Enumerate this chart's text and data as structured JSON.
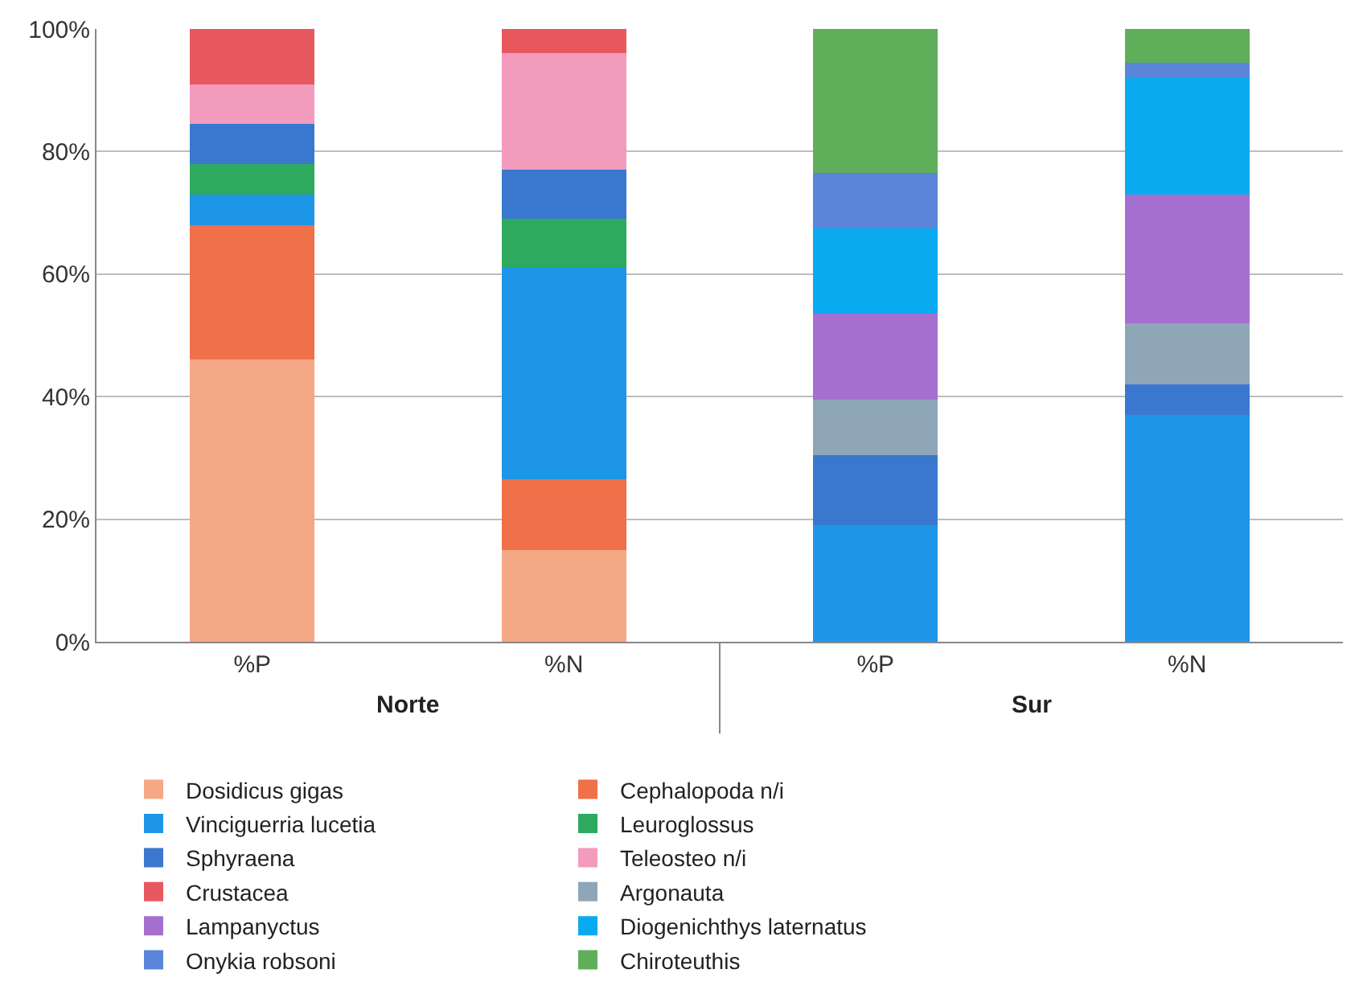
{
  "chart_data": {
    "type": "bar",
    "stacked": true,
    "categories": [
      "%P",
      "%N",
      "%P",
      "%N"
    ],
    "annotations": [
      "Norte",
      "Sur"
    ],
    "ylim": [
      0,
      100
    ],
    "yticks": [
      {
        "value": 0,
        "label": "0%"
      },
      {
        "value": 20,
        "label": "20%"
      },
      {
        "value": 40,
        "label": "40%"
      },
      {
        "value": 60,
        "label": "60%"
      },
      {
        "value": 80,
        "label": "80%"
      },
      {
        "value": 100,
        "label": "100%"
      }
    ],
    "grid": "y",
    "legend": "bottom",
    "series": [
      {
        "name": "Dosidicus gigas",
        "color": "#f5a886",
        "values": [
          46,
          15,
          null,
          null
        ]
      },
      {
        "name": "Cephalopoda n/i",
        "color": "#f0704a",
        "values": [
          22,
          11.5,
          null,
          null
        ]
      },
      {
        "name": "Vinciguerria lucetia",
        "color": "#1e96e8",
        "values": [
          5,
          34.5,
          19,
          37
        ]
      },
      {
        "name": "Leuroglossus",
        "color": "#2eaa5e",
        "values": [
          5,
          8,
          null,
          null
        ]
      },
      {
        "name": "Sphyraena",
        "color": "#3a78d0",
        "values": [
          6.5,
          8,
          11.5,
          5
        ]
      },
      {
        "name": "Teleosteo n/i",
        "color": "#f29bbd",
        "values": [
          6.5,
          19,
          null,
          null
        ]
      },
      {
        "name": "Crustacea",
        "color": "#e8595f",
        "values": [
          9,
          4,
          null,
          null
        ]
      },
      {
        "name": "Argonauta",
        "color": "#8fa6b8",
        "values": [
          null,
          null,
          9,
          10
        ]
      },
      {
        "name": "Lampanyctus",
        "color": "#a56fd0",
        "values": [
          null,
          null,
          14,
          21
        ]
      },
      {
        "name": "Diogenichthys laternatus",
        "color": "#0aaaf0",
        "values": [
          null,
          null,
          14,
          19
        ]
      },
      {
        "name": "Onykia robsoni",
        "color": "#5b85d8",
        "values": [
          null,
          null,
          9,
          2.5
        ]
      },
      {
        "name": "Chiroteuthis",
        "color": "#5fae5a",
        "values": [
          null,
          null,
          23.5,
          5.5
        ]
      }
    ]
  }
}
